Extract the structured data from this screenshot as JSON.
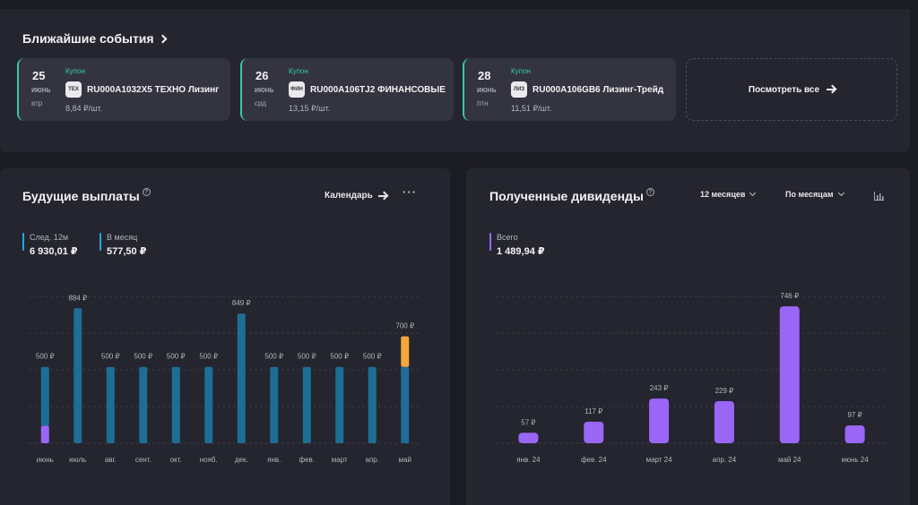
{
  "events": {
    "title": "Ближайшие события",
    "cards": [
      {
        "day": "25",
        "month": "июнь",
        "weekday": "втр",
        "type": "Купон",
        "logo": "ТЕХ",
        "name": "RU000A1032X5 ТЕХНО Лизинг",
        "amount": "8,84 ₽/шт."
      },
      {
        "day": "26",
        "month": "июнь",
        "weekday": "срд",
        "type": "Купон",
        "logo": "ФИН",
        "name": "RU000A106TJ2 ФИНАНСОВЫЕ",
        "amount": "13,15 ₽/шт."
      },
      {
        "day": "28",
        "month": "июнь",
        "weekday": "птн",
        "type": "Купон",
        "logo": "ЛИЗ",
        "name": "RU000A106GB6 Лизинг-Трейд",
        "amount": "11,51 ₽/шт."
      }
    ],
    "view_all": "Посмотреть все"
  },
  "future": {
    "title": "Будущие выплаты",
    "calendar": "Календарь",
    "stats": [
      {
        "label": "След. 12м",
        "value": "6 930,01 ₽"
      },
      {
        "label": "В месяц",
        "value": "577,50 ₽"
      }
    ]
  },
  "dividends": {
    "title": "Полученные дивиденды",
    "period": "12 месяцев",
    "grouping": "По месяцам",
    "stat": {
      "label": "Всего",
      "value": "1 489,94 ₽"
    }
  },
  "colors": {
    "teal_bar": "#1d6e94",
    "purple": "#9a66f6",
    "orange": "#f7a63a",
    "accent_green": "#37c9a3",
    "stat_blue": "#22a8e6"
  },
  "chart_data": [
    {
      "type": "bar",
      "stacked": true,
      "categories": [
        "июнь",
        "июль",
        "авг.",
        "сент.",
        "окт.",
        "нояб.",
        "дек.",
        "янв.",
        "фев.",
        "март",
        "апр.",
        "май"
      ],
      "labels": [
        "500 ₽",
        "884 ₽",
        "500 ₽",
        "500 ₽",
        "500 ₽",
        "500 ₽",
        "849 ₽",
        "500 ₽",
        "500 ₽",
        "500 ₽",
        "500 ₽",
        "700 ₽"
      ],
      "series": [
        {
          "color": "#9a66f6",
          "values": [
            116,
            0,
            0,
            0,
            0,
            0,
            0,
            0,
            0,
            0,
            0,
            0
          ]
        },
        {
          "color": "#1d6e94",
          "values": [
            384,
            884,
            500,
            500,
            500,
            500,
            849,
            500,
            500,
            500,
            500,
            500
          ]
        },
        {
          "color": "#f7a63a",
          "values": [
            0,
            0,
            0,
            0,
            0,
            0,
            0,
            0,
            0,
            0,
            0,
            200
          ]
        }
      ],
      "ylim": [
        0,
        950
      ],
      "grid": true
    },
    {
      "type": "bar",
      "categories": [
        "янв. 24",
        "фев. 24",
        "март 24",
        "апр. 24",
        "май 24",
        "июнь 24"
      ],
      "values": [
        57,
        117,
        243,
        229,
        746,
        97
      ],
      "labels": [
        "57 ₽",
        "117 ₽",
        "243 ₽",
        "229 ₽",
        "746 ₽",
        "97 ₽"
      ],
      "color": "#9a66f6",
      "ylim": [
        0,
        800
      ],
      "grid": true
    }
  ]
}
